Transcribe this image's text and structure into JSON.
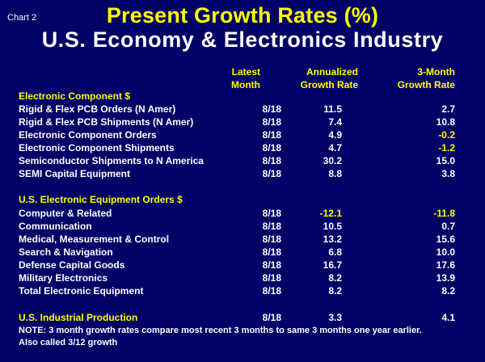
{
  "chart_data": {
    "type": "table",
    "chart_tag": "Chart 2",
    "title": "Present Growth Rates (%)",
    "subtitle": "U.S. Economy & Electronics Industry",
    "headers": {
      "latest_month": [
        "Latest",
        "Month"
      ],
      "annualized": [
        "Annualized",
        "Growth Rate"
      ],
      "three_month": [
        "3-Month",
        "Growth Rate"
      ]
    },
    "sections": [
      {
        "name": "Electronic Component $",
        "rows": [
          {
            "label": "Rigid & Flex PCB Orders (N Amer)",
            "month": "8/18",
            "annualized": "11.5",
            "three_month": "2.7"
          },
          {
            "label": "Rigid & Flex PCB Shipments (N Amer)",
            "month": "8/18",
            "annualized": "7.4",
            "three_month": "10.8"
          },
          {
            "label": "Electronic Component Orders",
            "month": "8/18",
            "annualized": "4.9",
            "three_month": "-0.2"
          },
          {
            "label": "Electronic Component Shipments",
            "month": "8/18",
            "annualized": "4.7",
            "three_month": "-1.2"
          },
          {
            "label": "Semiconductor Shipments to N America",
            "month": "8/18",
            "annualized": "30.2",
            "three_month": "15.0"
          },
          {
            "label": "SEMI Capital Equipment",
            "month": "8/18",
            "annualized": "8.8",
            "three_month": "3.8"
          }
        ]
      },
      {
        "name": "U.S. Electronic Equipment Orders $",
        "rows": [
          {
            "label": "Computer & Related",
            "month": "8/18",
            "annualized": "-12.1",
            "three_month": "-11.8"
          },
          {
            "label": "Communication",
            "month": "8/18",
            "annualized": "10.5",
            "three_month": "0.7"
          },
          {
            "label": "Medical, Measurement & Control",
            "month": "8/18",
            "annualized": "13.2",
            "three_month": "15.6"
          },
          {
            "label": "Search & Navigation",
            "month": "8/18",
            "annualized": "6.8",
            "three_month": "10.0"
          },
          {
            "label": "Defense Capital Goods",
            "month": "8/18",
            "annualized": "16.7",
            "three_month": "17.6"
          },
          {
            "label": "Military Electronics",
            "month": "8/18",
            "annualized": "8.2",
            "three_month": "13.9"
          },
          {
            "label": "Total Electronic Equipment",
            "month": "8/18",
            "annualized": "8.2",
            "three_month": "8.2"
          }
        ]
      },
      {
        "name": "U.S. Industrial Production",
        "month": "8/18",
        "annualized": "3.3",
        "three_month": "4.1"
      }
    ],
    "note": [
      "NOTE: 3 month growth rates compare most recent 3 months to same 3 months one year earlier.",
      "Also called 3/12 growth"
    ]
  },
  "colors": {
    "background": "#000066",
    "highlight": "#ffff00",
    "text": "#ffffff"
  }
}
